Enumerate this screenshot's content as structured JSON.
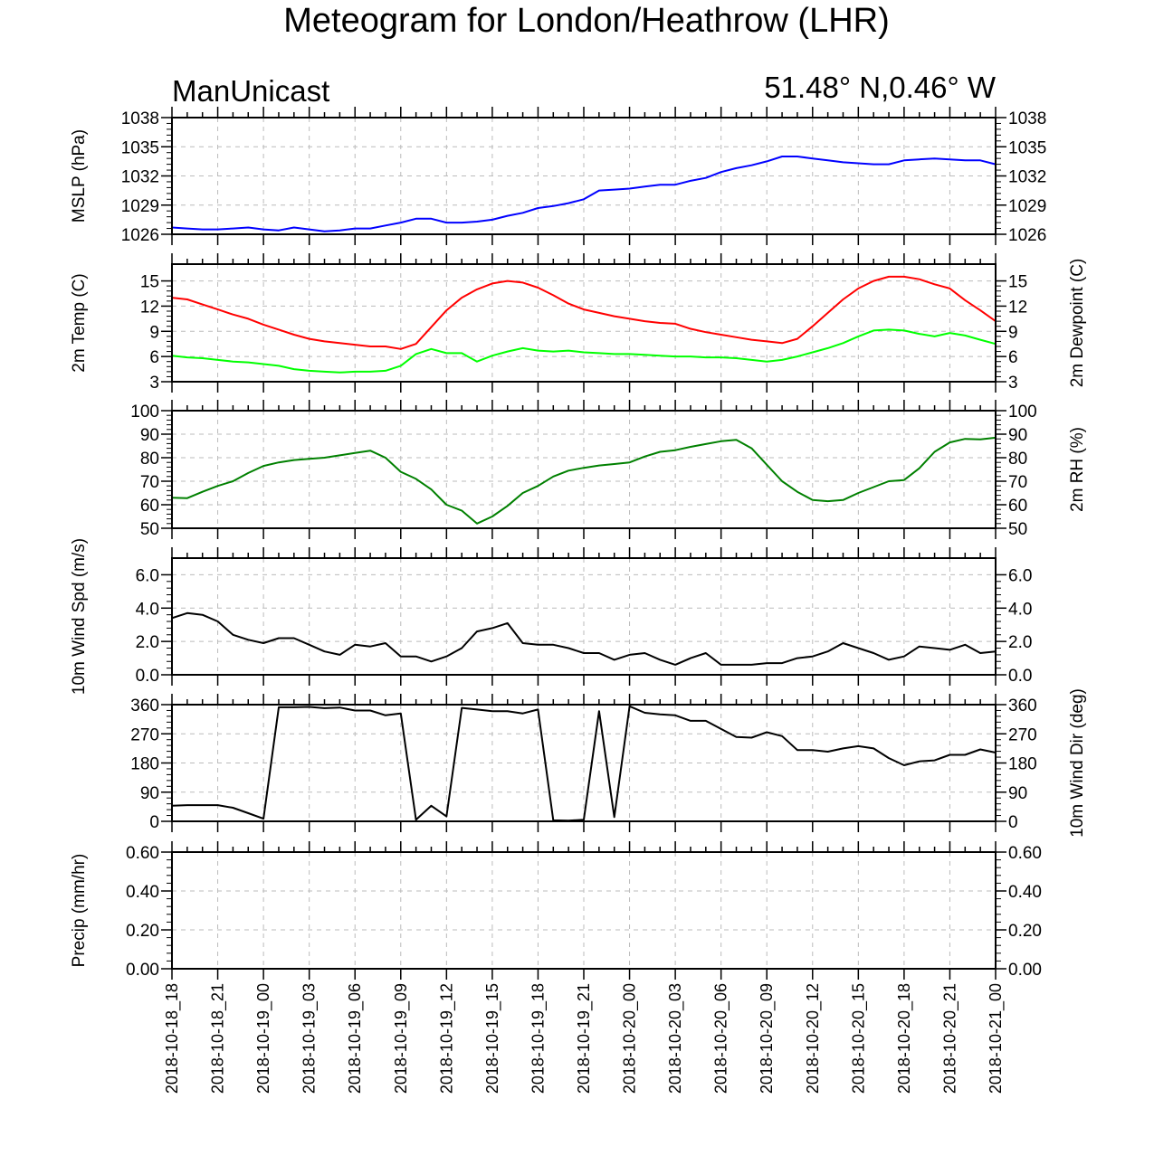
{
  "title": "Meteogram for London/Heathrow (LHR)",
  "left_subtitle": "ManUnicast",
  "right_subtitle": "51.48° N,0.46° W",
  "chart_data": {
    "type": "line",
    "x_start": "2018-10-18_18",
    "x_end": "2018-10-21_00",
    "x_tick_labels": [
      "2018-10-18_18",
      "2018-10-18_21",
      "2018-10-19_00",
      "2018-10-19_03",
      "2018-10-19_06",
      "2018-10-19_09",
      "2018-10-19_12",
      "2018-10-19_15",
      "2018-10-19_18",
      "2018-10-19_21",
      "2018-10-20_00",
      "2018-10-20_03",
      "2018-10-20_06",
      "2018-10-20_09",
      "2018-10-20_12",
      "2018-10-20_15",
      "2018-10-20_18",
      "2018-10-20_21",
      "2018-10-21_00"
    ],
    "x_hours": [
      0,
      1,
      2,
      3,
      4,
      5,
      6,
      7,
      8,
      9,
      10,
      11,
      12,
      13,
      14,
      15,
      16,
      17,
      18,
      19,
      20,
      21,
      22,
      23,
      24,
      25,
      26,
      27,
      28,
      29,
      30,
      31,
      32,
      33,
      34,
      35,
      36,
      37,
      38,
      39,
      40,
      41,
      42,
      43,
      44,
      45,
      46,
      47,
      48,
      49,
      50,
      51,
      52,
      53,
      54
    ],
    "panels": [
      {
        "left_label": "MSLP (hPa)",
        "right_label": "",
        "ylim": [
          1026,
          1038
        ],
        "yticks": [
          1026,
          1029,
          1032,
          1035,
          1038
        ],
        "tick_labels": [
          "1026",
          "1029",
          "1032",
          "1035",
          "1038"
        ],
        "right_ticks": true,
        "series": [
          {
            "color": "#0000ff",
            "values": [
              1026.7,
              1026.6,
              1026.5,
              1026.5,
              1026.6,
              1026.7,
              1026.5,
              1026.4,
              1026.7,
              1026.5,
              1026.3,
              1026.4,
              1026.6,
              1026.6,
              1026.9,
              1027.2,
              1027.6,
              1027.6,
              1027.2,
              1027.2,
              1027.3,
              1027.5,
              1027.9,
              1028.2,
              1028.7,
              1028.9,
              1029.2,
              1029.6,
              1030.5,
              1030.6,
              1030.7,
              1030.9,
              1031.1,
              1031.1,
              1031.5,
              1031.8,
              1032.4,
              1032.8,
              1033.1,
              1033.5,
              1034.0,
              1034.0,
              1033.8,
              1033.6,
              1033.4,
              1033.3,
              1033.2,
              1033.2,
              1033.6,
              1033.7,
              1033.8,
              1033.7,
              1033.6,
              1033.6,
              1033.2
            ]
          }
        ]
      },
      {
        "left_label": "2m Temp (C)",
        "right_label": "2m Dewpoint (C)",
        "ylim": [
          3,
          17
        ],
        "yticks": [
          3,
          6,
          9,
          12,
          15
        ],
        "tick_labels": [
          "3",
          "6",
          "9",
          "12",
          "15"
        ],
        "right_ticks": true,
        "series": [
          {
            "color": "#ff0000",
            "values": [
              13.0,
              12.8,
              12.2,
              11.6,
              11.0,
              10.5,
              9.8,
              9.2,
              8.6,
              8.1,
              7.8,
              7.6,
              7.4,
              7.2,
              7.2,
              6.9,
              7.5,
              9.5,
              11.5,
              13.0,
              14.0,
              14.7,
              15.0,
              14.8,
              14.2,
              13.3,
              12.3,
              11.6,
              11.2,
              10.8,
              10.5,
              10.2,
              10.0,
              9.9,
              9.3,
              8.9,
              8.6,
              8.3,
              8.0,
              7.8,
              7.6,
              8.1,
              9.6,
              11.2,
              12.8,
              14.1,
              15.0,
              15.5,
              15.5,
              15.2,
              14.6,
              14.1,
              12.7,
              11.5,
              10.2
            ]
          },
          {
            "color": "#00ff00",
            "values": [
              6.1,
              5.9,
              5.8,
              5.6,
              5.4,
              5.3,
              5.1,
              4.9,
              4.5,
              4.3,
              4.2,
              4.1,
              4.2,
              4.2,
              4.3,
              4.9,
              6.3,
              6.9,
              6.4,
              6.4,
              5.4,
              6.1,
              6.6,
              7.0,
              6.7,
              6.6,
              6.7,
              6.5,
              6.4,
              6.3,
              6.3,
              6.2,
              6.1,
              6.0,
              6.0,
              5.9,
              5.9,
              5.8,
              5.6,
              5.4,
              5.6,
              6.0,
              6.5,
              7.0,
              7.6,
              8.4,
              9.1,
              9.2,
              9.1,
              8.7,
              8.4,
              8.8,
              8.5,
              8.0,
              7.5
            ]
          }
        ]
      },
      {
        "left_label": "",
        "right_label": "2m RH (%)",
        "ylim": [
          50,
          100
        ],
        "yticks": [
          50,
          60,
          70,
          80,
          90,
          100
        ],
        "tick_labels": [
          "50",
          "60",
          "70",
          "80",
          "90",
          "100"
        ],
        "right_ticks": true,
        "series": [
          {
            "color": "#008000",
            "values": [
              63,
              62.8,
              65.5,
              68,
              70,
              73.5,
              76.5,
              78,
              79,
              79.5,
              80,
              81,
              82,
              83,
              80,
              74,
              71,
              66.5,
              60,
              57.5,
              52,
              55,
              59.5,
              65,
              68,
              72,
              74.5,
              75.7,
              76.7,
              77.3,
              78,
              80.5,
              82.5,
              83.2,
              84.6,
              85.8,
              87,
              87.6,
              84,
              77,
              70,
              65.5,
              62,
              61.5,
              62,
              65,
              67.5,
              70,
              70.5,
              75.5,
              82.5,
              86.5,
              88,
              87.8,
              88.5
            ]
          }
        ]
      },
      {
        "left_label": "10m Wind Spd (m/s)",
        "right_label": "",
        "ylim": [
          0,
          7
        ],
        "yticks": [
          0,
          2,
          4,
          6
        ],
        "tick_labels": [
          "0.0",
          "2.0",
          "4.0",
          "6.0"
        ],
        "right_ticks": true,
        "series": [
          {
            "color": "#000000",
            "values": [
              3.4,
              3.7,
              3.6,
              3.2,
              2.4,
              2.1,
              1.9,
              2.2,
              2.2,
              1.8,
              1.4,
              1.2,
              1.8,
              1.7,
              1.9,
              1.1,
              1.1,
              0.8,
              1.1,
              1.6,
              2.6,
              2.8,
              3.1,
              1.9,
              1.8,
              1.8,
              1.6,
              1.3,
              1.3,
              0.9,
              1.2,
              1.3,
              0.9,
              0.6,
              1.0,
              1.3,
              0.6,
              0.6,
              0.6,
              0.7,
              0.7,
              1.0,
              1.1,
              1.4,
              1.9,
              1.6,
              1.3,
              0.9,
              1.1,
              1.7,
              1.6,
              1.5,
              1.8,
              1.3,
              1.4
            ]
          }
        ]
      },
      {
        "left_label": "",
        "right_label": "10m Wind Dir (deg)",
        "ylim": [
          0,
          360
        ],
        "yticks": [
          0,
          90,
          180,
          270,
          360
        ],
        "tick_labels": [
          "0",
          "90",
          "180",
          "270",
          "360"
        ],
        "right_ticks": true,
        "series": [
          {
            "color": "#000000",
            "values": [
              48,
              50,
              50,
              50,
              42,
              25,
              8,
              352,
              352,
              353,
              349,
              351,
              342,
              342,
              327,
              333,
              5,
              48,
              15,
              350,
              345,
              340,
              340,
              333,
              345,
              3,
              2,
              5,
              340,
              13,
              355,
              335,
              330,
              327,
              310,
              310,
              285,
              260,
              258,
              275,
              263,
              220,
              220,
              215,
              225,
              232,
              225,
              195,
              173,
              185,
              188,
              205,
              205,
              222,
              212
            ]
          }
        ]
      },
      {
        "left_label": "Precip (mm/hr)",
        "right_label": "",
        "ylim": [
          0,
          0.6
        ],
        "yticks": [
          0,
          0.2,
          0.4,
          0.6
        ],
        "tick_labels": [
          "0.00",
          "0.20",
          "0.40",
          "0.60"
        ],
        "right_ticks": true,
        "series": []
      }
    ]
  }
}
